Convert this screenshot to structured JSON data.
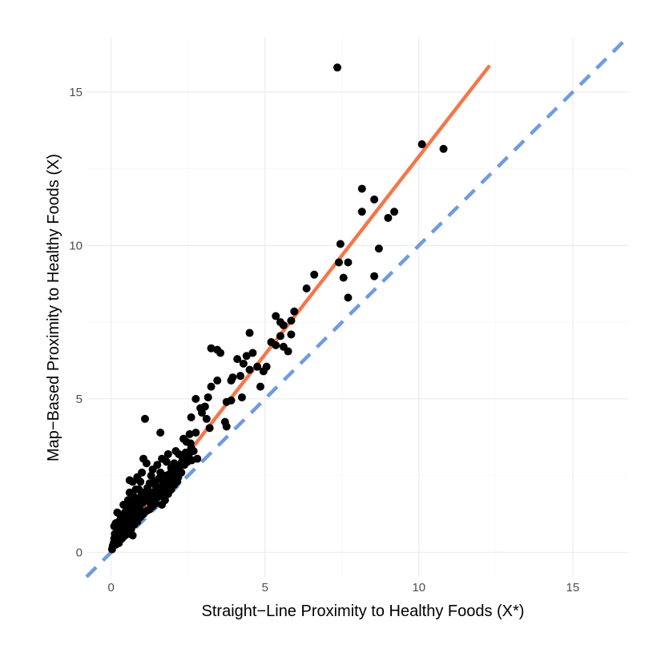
{
  "chart_data": {
    "type": "scatter",
    "xlabel": "Straight−Line Proximity to Healthy Foods (X*)",
    "ylabel": "Map−Based Proximity to Healthy Foods (X)",
    "xlim": [
      -0.8,
      16.8
    ],
    "ylim": [
      -0.8,
      16.8
    ],
    "x_ticks": [
      0,
      5,
      10,
      15
    ],
    "y_ticks": [
      0,
      5,
      10,
      15
    ],
    "grid": true,
    "colors": {
      "points": "#000000",
      "fit_line": "#f4774a",
      "identity_line": "#6f9be0"
    },
    "reference_lines": [
      {
        "kind": "identity",
        "style": "dashed",
        "intercept": 0,
        "slope": 1,
        "x_range": [
          -0.8,
          16.8
        ]
      },
      {
        "kind": "fitted",
        "style": "solid",
        "intercept": 0.0,
        "slope": 1.29,
        "x_range": [
          0.05,
          12.3
        ]
      }
    ],
    "points": [
      [
        7.35,
        15.8
      ],
      [
        10.1,
        13.3
      ],
      [
        10.8,
        13.15
      ],
      [
        8.15,
        11.85
      ],
      [
        8.15,
        11.1
      ],
      [
        8.55,
        11.5
      ],
      [
        9.2,
        11.1
      ],
      [
        9.0,
        10.9
      ],
      [
        7.45,
        10.05
      ],
      [
        7.4,
        9.45
      ],
      [
        7.7,
        9.45
      ],
      [
        8.7,
        9.9
      ],
      [
        7.55,
        8.95
      ],
      [
        8.55,
        9.0
      ],
      [
        7.7,
        8.3
      ],
      [
        6.6,
        9.05
      ],
      [
        6.35,
        8.6
      ],
      [
        5.85,
        7.55
      ],
      [
        5.95,
        7.85
      ],
      [
        5.35,
        7.7
      ],
      [
        5.5,
        7.5
      ],
      [
        5.6,
        7.4
      ],
      [
        5.85,
        7.1
      ],
      [
        4.5,
        7.15
      ],
      [
        5.5,
        7.05
      ],
      [
        5.2,
        6.85
      ],
      [
        5.6,
        6.7
      ],
      [
        5.35,
        6.75
      ],
      [
        5.75,
        6.55
      ],
      [
        5.05,
        6.05
      ],
      [
        4.95,
        5.9
      ],
      [
        4.85,
        5.4
      ],
      [
        4.6,
        6.5
      ],
      [
        4.4,
        6.4
      ],
      [
        4.3,
        6.15
      ],
      [
        4.5,
        5.95
      ],
      [
        4.2,
        5.75
      ],
      [
        4.25,
        5.05
      ],
      [
        4.75,
        6.05
      ],
      [
        4.1,
        6.3
      ],
      [
        3.95,
        5.7
      ],
      [
        3.9,
        5.6
      ],
      [
        3.9,
        4.95
      ],
      [
        3.75,
        4.9
      ],
      [
        3.7,
        4.25
      ],
      [
        3.75,
        4.1
      ],
      [
        3.25,
        6.65
      ],
      [
        3.45,
        6.6
      ],
      [
        3.55,
        6.5
      ],
      [
        3.45,
        5.6
      ],
      [
        3.25,
        5.4
      ],
      [
        3.15,
        5.05
      ],
      [
        3.05,
        4.75
      ],
      [
        2.95,
        4.55
      ],
      [
        3.1,
        4.35
      ],
      [
        3.2,
        4.05
      ],
      [
        2.75,
        5.0
      ],
      [
        2.6,
        4.4
      ],
      [
        2.9,
        4.7
      ],
      [
        2.75,
        3.9
      ],
      [
        2.55,
        3.85
      ],
      [
        2.45,
        3.6
      ],
      [
        2.35,
        3.7
      ],
      [
        2.6,
        3.4
      ],
      [
        2.8,
        3.05
      ],
      [
        2.45,
        3.05
      ],
      [
        2.3,
        2.95
      ],
      [
        2.1,
        3.3
      ],
      [
        2.2,
        3.2
      ],
      [
        2.05,
        2.9
      ],
      [
        1.95,
        2.75
      ],
      [
        1.85,
        3.2
      ],
      [
        1.8,
        2.95
      ],
      [
        1.65,
        3.05
      ],
      [
        1.9,
        2.55
      ],
      [
        1.75,
        2.3
      ],
      [
        1.6,
        2.6
      ],
      [
        1.55,
        2.4
      ],
      [
        1.5,
        2.85
      ],
      [
        1.45,
        2.15
      ],
      [
        1.35,
        2.7
      ],
      [
        1.3,
        2.5
      ],
      [
        1.25,
        2.25
      ],
      [
        1.15,
        2.9
      ],
      [
        1.1,
        4.35
      ],
      [
        1.6,
        3.9
      ],
      [
        1.05,
        3.05
      ],
      [
        1.0,
        2.6
      ],
      [
        0.95,
        2.3
      ],
      [
        0.9,
        2.05
      ],
      [
        0.85,
        2.45
      ],
      [
        0.8,
        2.05
      ],
      [
        0.75,
        1.8
      ],
      [
        0.7,
        2.3
      ],
      [
        0.65,
        1.6
      ],
      [
        0.6,
        1.95
      ],
      [
        0.55,
        1.7
      ],
      [
        0.5,
        1.45
      ],
      [
        0.45,
        1.3
      ],
      [
        0.4,
        1.55
      ],
      [
        0.35,
        1.1
      ],
      [
        0.3,
        0.85
      ],
      [
        0.25,
        1.0
      ],
      [
        0.2,
        0.65
      ],
      [
        0.15,
        0.95
      ],
      [
        0.1,
        0.45
      ],
      [
        0.05,
        0.2
      ],
      [
        0.03,
        0.1
      ],
      [
        0.08,
        0.3
      ],
      [
        0.12,
        0.6
      ],
      [
        0.18,
        0.4
      ],
      [
        0.22,
        0.75
      ],
      [
        0.28,
        0.55
      ],
      [
        0.32,
        0.95
      ],
      [
        0.38,
        0.7
      ],
      [
        0.42,
        0.9
      ],
      [
        0.48,
        1.05
      ],
      [
        0.52,
        0.8
      ],
      [
        0.58,
        1.25
      ],
      [
        0.62,
        1.0
      ],
      [
        0.68,
        1.4
      ],
      [
        0.72,
        1.15
      ],
      [
        0.78,
        1.55
      ],
      [
        0.82,
        1.3
      ],
      [
        0.88,
        1.7
      ],
      [
        0.92,
        1.45
      ],
      [
        0.98,
        1.85
      ],
      [
        1.02,
        1.6
      ],
      [
        1.08,
        1.95
      ],
      [
        1.12,
        1.7
      ],
      [
        1.18,
        2.1
      ],
      [
        1.22,
        1.85
      ],
      [
        1.28,
        1.6
      ],
      [
        1.32,
        1.95
      ],
      [
        1.38,
        1.75
      ],
      [
        1.42,
        2.3
      ],
      [
        1.48,
        1.95
      ],
      [
        1.52,
        1.8
      ],
      [
        1.58,
        2.1
      ],
      [
        1.62,
        1.9
      ],
      [
        1.68,
        2.25
      ],
      [
        1.72,
        2.0
      ],
      [
        1.78,
        2.5
      ],
      [
        1.82,
        2.2
      ],
      [
        1.88,
        2.4
      ],
      [
        1.92,
        2.1
      ],
      [
        1.98,
        2.6
      ],
      [
        2.02,
        2.35
      ],
      [
        2.08,
        2.55
      ],
      [
        2.12,
        2.7
      ],
      [
        2.18,
        2.45
      ],
      [
        2.22,
        2.8
      ],
      [
        2.28,
        2.6
      ],
      [
        2.32,
        3.1
      ],
      [
        2.38,
        2.85
      ],
      [
        2.42,
        3.25
      ],
      [
        2.48,
        2.95
      ],
      [
        2.52,
        3.15
      ],
      [
        2.58,
        3.55
      ],
      [
        2.62,
        3.0
      ],
      [
        2.68,
        3.3
      ],
      [
        0.25,
        0.3
      ],
      [
        0.35,
        0.45
      ],
      [
        0.45,
        0.55
      ],
      [
        0.55,
        0.6
      ],
      [
        0.65,
        0.75
      ],
      [
        0.75,
        0.9
      ],
      [
        0.85,
        1.0
      ],
      [
        0.95,
        1.15
      ],
      [
        1.05,
        1.25
      ],
      [
        1.15,
        1.35
      ],
      [
        1.25,
        1.4
      ],
      [
        1.35,
        1.5
      ],
      [
        1.45,
        1.6
      ],
      [
        0.15,
        0.25
      ],
      [
        0.6,
        2.35
      ],
      [
        0.7,
        0.55
      ],
      [
        0.5,
        0.7
      ],
      [
        0.4,
        0.95
      ],
      [
        0.3,
        1.2
      ],
      [
        0.2,
        1.3
      ],
      [
        0.1,
        0.85
      ],
      [
        1.65,
        1.55
      ],
      [
        1.75,
        1.7
      ],
      [
        1.85,
        1.9
      ],
      [
        1.95,
        2.05
      ],
      [
        2.05,
        2.2
      ],
      [
        2.15,
        2.3
      ]
    ]
  }
}
